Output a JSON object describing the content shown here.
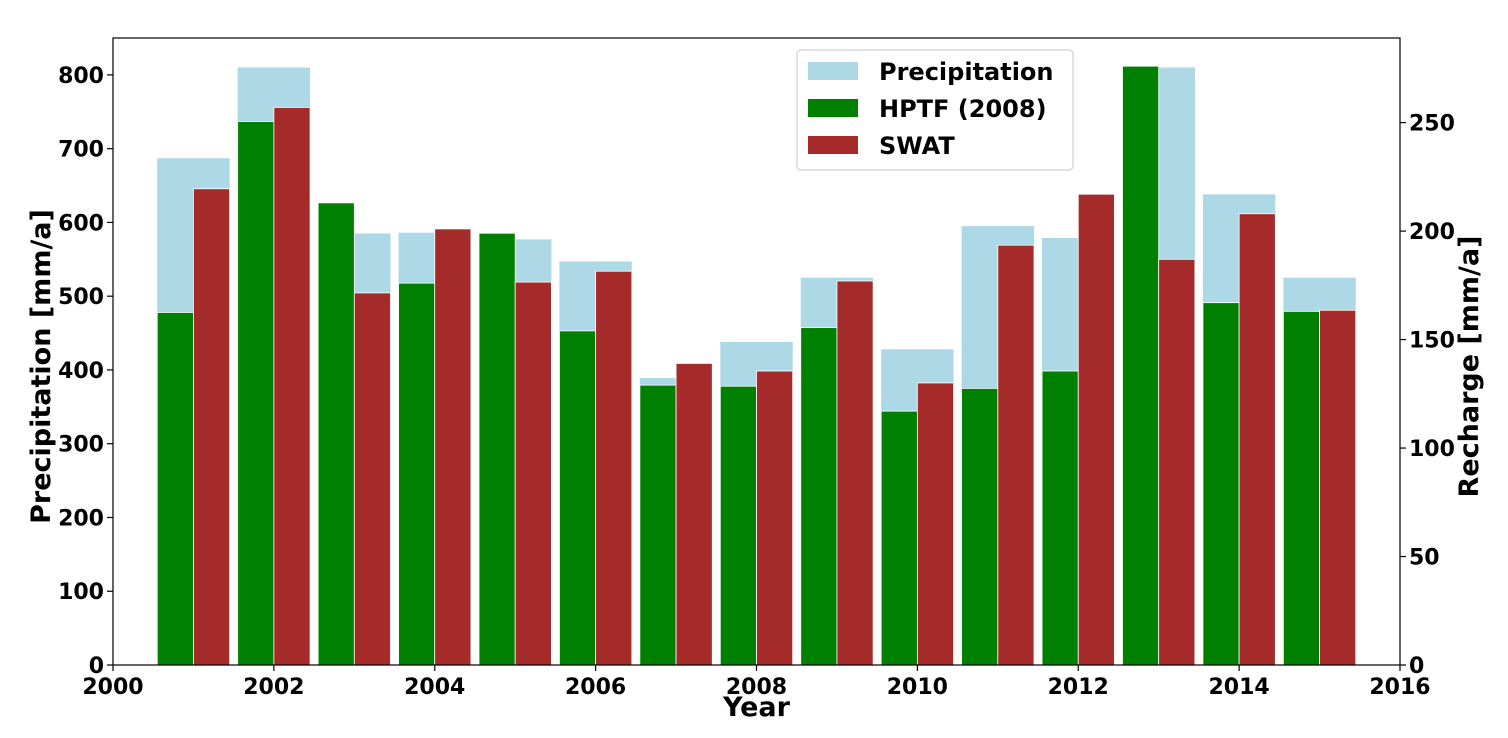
{
  "chart_data": {
    "type": "bar",
    "xlabel": "Year",
    "ylabel_left": "Precipitation [mm/a]",
    "ylabel_right": "Recharge [mm/a]",
    "xlim": [
      2000,
      2016
    ],
    "ylim_left": [
      0,
      850
    ],
    "ylim_right": [
      0,
      289
    ],
    "x_ticks": [
      2000,
      2002,
      2004,
      2006,
      2008,
      2010,
      2012,
      2014,
      2016
    ],
    "y_ticks_left": [
      0,
      100,
      200,
      300,
      400,
      500,
      600,
      700,
      800
    ],
    "y_ticks_right": [
      0,
      50,
      100,
      150,
      200,
      250
    ],
    "grid": false,
    "legend_position": "top-center",
    "years": [
      2001,
      2002,
      2003,
      2004,
      2005,
      2006,
      2007,
      2008,
      2009,
      2010,
      2011,
      2012,
      2013,
      2014,
      2015
    ],
    "series": [
      {
        "name": "Precipitation",
        "axis": "left",
        "color": "#add8e6",
        "values": [
          687,
          810,
          585,
          586,
          577,
          547,
          389,
          438,
          525,
          428,
          595,
          579,
          810,
          638,
          525
        ]
      },
      {
        "name": "HPTF (2008)",
        "axis": "right",
        "color": "#008000",
        "values": [
          162.5,
          250.5,
          213,
          176,
          199,
          154,
          129,
          128.5,
          155.5,
          117,
          127.5,
          135.5,
          276,
          167,
          163
        ]
      },
      {
        "name": "SWAT",
        "axis": "right",
        "color": "#a52a2a",
        "values": [
          219.5,
          257,
          171.5,
          201,
          176.5,
          181.5,
          139,
          135.5,
          177,
          130,
          193.5,
          217,
          187,
          208,
          163.5
        ]
      }
    ]
  }
}
